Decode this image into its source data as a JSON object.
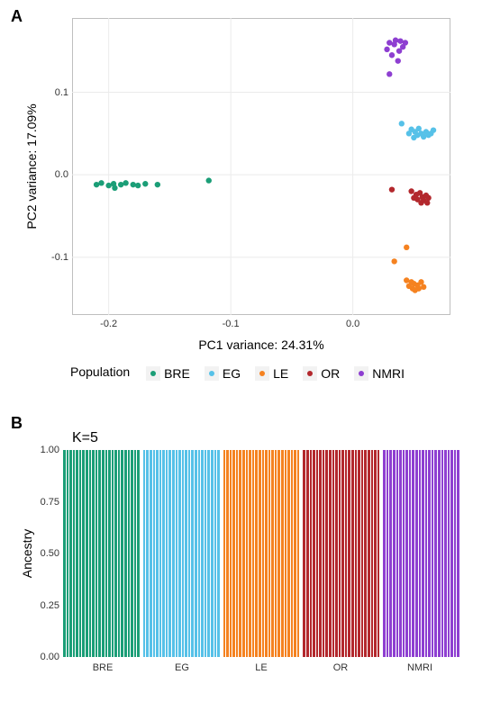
{
  "panelA": {
    "label": "A",
    "type": "scatter",
    "xlabel": "PC1 variance: 24.31%",
    "ylabel": "PC2 variance: 17.09%",
    "background_color": "#ffffff",
    "grid_color": "#ebebeb",
    "border_color": "#bfbfbf",
    "xlim": [
      -0.23,
      0.08
    ],
    "ylim": [
      -0.17,
      0.19
    ],
    "xticks": [
      -0.2,
      -0.1,
      0.0
    ],
    "yticks": [
      -0.1,
      0.0,
      0.1
    ],
    "point_radius": 3.2,
    "populations": {
      "BRE": {
        "color": "#1b9e77"
      },
      "EG": {
        "color": "#56c1e8"
      },
      "LE": {
        "color": "#f58220"
      },
      "OR": {
        "color": "#b3282d"
      },
      "NMRI": {
        "color": "#8e3fd1"
      }
    },
    "points": [
      {
        "pop": "BRE",
        "x": -0.21,
        "y": -0.012
      },
      {
        "pop": "BRE",
        "x": -0.206,
        "y": -0.01
      },
      {
        "pop": "BRE",
        "x": -0.2,
        "y": -0.013
      },
      {
        "pop": "BRE",
        "x": -0.196,
        "y": -0.011
      },
      {
        "pop": "BRE",
        "x": -0.195,
        "y": -0.016
      },
      {
        "pop": "BRE",
        "x": -0.19,
        "y": -0.012
      },
      {
        "pop": "BRE",
        "x": -0.186,
        "y": -0.01
      },
      {
        "pop": "BRE",
        "x": -0.18,
        "y": -0.012
      },
      {
        "pop": "BRE",
        "x": -0.176,
        "y": -0.013
      },
      {
        "pop": "BRE",
        "x": -0.17,
        "y": -0.011
      },
      {
        "pop": "BRE",
        "x": -0.16,
        "y": -0.012
      },
      {
        "pop": "BRE",
        "x": -0.118,
        "y": -0.007
      },
      {
        "pop": "NMRI",
        "x": 0.028,
        "y": 0.152
      },
      {
        "pop": "NMRI",
        "x": 0.03,
        "y": 0.16
      },
      {
        "pop": "NMRI",
        "x": 0.032,
        "y": 0.145
      },
      {
        "pop": "NMRI",
        "x": 0.034,
        "y": 0.158
      },
      {
        "pop": "NMRI",
        "x": 0.035,
        "y": 0.163
      },
      {
        "pop": "NMRI",
        "x": 0.037,
        "y": 0.138
      },
      {
        "pop": "NMRI",
        "x": 0.038,
        "y": 0.15
      },
      {
        "pop": "NMRI",
        "x": 0.039,
        "y": 0.162
      },
      {
        "pop": "NMRI",
        "x": 0.041,
        "y": 0.155
      },
      {
        "pop": "NMRI",
        "x": 0.043,
        "y": 0.16
      },
      {
        "pop": "NMRI",
        "x": 0.03,
        "y": 0.122
      },
      {
        "pop": "EG",
        "x": 0.046,
        "y": 0.05
      },
      {
        "pop": "EG",
        "x": 0.048,
        "y": 0.055
      },
      {
        "pop": "EG",
        "x": 0.05,
        "y": 0.045
      },
      {
        "pop": "EG",
        "x": 0.051,
        "y": 0.052
      },
      {
        "pop": "EG",
        "x": 0.053,
        "y": 0.048
      },
      {
        "pop": "EG",
        "x": 0.054,
        "y": 0.056
      },
      {
        "pop": "EG",
        "x": 0.056,
        "y": 0.05
      },
      {
        "pop": "EG",
        "x": 0.058,
        "y": 0.046
      },
      {
        "pop": "EG",
        "x": 0.06,
        "y": 0.052
      },
      {
        "pop": "EG",
        "x": 0.062,
        "y": 0.048
      },
      {
        "pop": "EG",
        "x": 0.064,
        "y": 0.05
      },
      {
        "pop": "EG",
        "x": 0.066,
        "y": 0.054
      },
      {
        "pop": "EG",
        "x": 0.04,
        "y": 0.062
      },
      {
        "pop": "OR",
        "x": 0.032,
        "y": -0.018
      },
      {
        "pop": "OR",
        "x": 0.048,
        "y": -0.02
      },
      {
        "pop": "OR",
        "x": 0.05,
        "y": -0.028
      },
      {
        "pop": "OR",
        "x": 0.052,
        "y": -0.024
      },
      {
        "pop": "OR",
        "x": 0.053,
        "y": -0.03
      },
      {
        "pop": "OR",
        "x": 0.055,
        "y": -0.022
      },
      {
        "pop": "OR",
        "x": 0.056,
        "y": -0.034
      },
      {
        "pop": "OR",
        "x": 0.057,
        "y": -0.027
      },
      {
        "pop": "OR",
        "x": 0.058,
        "y": -0.031
      },
      {
        "pop": "OR",
        "x": 0.06,
        "y": -0.025
      },
      {
        "pop": "OR",
        "x": 0.061,
        "y": -0.034
      },
      {
        "pop": "OR",
        "x": 0.062,
        "y": -0.028
      },
      {
        "pop": "LE",
        "x": 0.034,
        "y": -0.105
      },
      {
        "pop": "LE",
        "x": 0.044,
        "y": -0.088
      },
      {
        "pop": "LE",
        "x": 0.044,
        "y": -0.128
      },
      {
        "pop": "LE",
        "x": 0.046,
        "y": -0.135
      },
      {
        "pop": "LE",
        "x": 0.048,
        "y": -0.13
      },
      {
        "pop": "LE",
        "x": 0.049,
        "y": -0.138
      },
      {
        "pop": "LE",
        "x": 0.05,
        "y": -0.132
      },
      {
        "pop": "LE",
        "x": 0.051,
        "y": -0.14
      },
      {
        "pop": "LE",
        "x": 0.053,
        "y": -0.134
      },
      {
        "pop": "LE",
        "x": 0.054,
        "y": -0.138
      },
      {
        "pop": "LE",
        "x": 0.056,
        "y": -0.13
      },
      {
        "pop": "LE",
        "x": 0.058,
        "y": -0.136
      }
    ],
    "legend_title": "Population",
    "legend_order": [
      "BRE",
      "EG",
      "LE",
      "OR",
      "NMRI"
    ]
  },
  "panelB": {
    "label": "B",
    "k_label": "K=5",
    "type": "structure-bar",
    "ylabel": "Ancestry",
    "ylim": [
      0.0,
      1.0
    ],
    "yticks": [
      0.0,
      0.25,
      0.5,
      0.75,
      1.0
    ],
    "bars_per_group": 24,
    "bar_separator_color": "#ffffff",
    "groups": [
      {
        "name": "BRE",
        "color": "#1b9e77"
      },
      {
        "name": "EG",
        "color": "#56c1e8"
      },
      {
        "name": "LE",
        "color": "#f58220"
      },
      {
        "name": "OR",
        "color": "#b3282d"
      },
      {
        "name": "NMRI",
        "color": "#8e3fd1"
      }
    ]
  },
  "tick_label_format": {
    "A_y_decimals": 1,
    "A_x_decimals": 1,
    "B_y_decimals": 2
  }
}
